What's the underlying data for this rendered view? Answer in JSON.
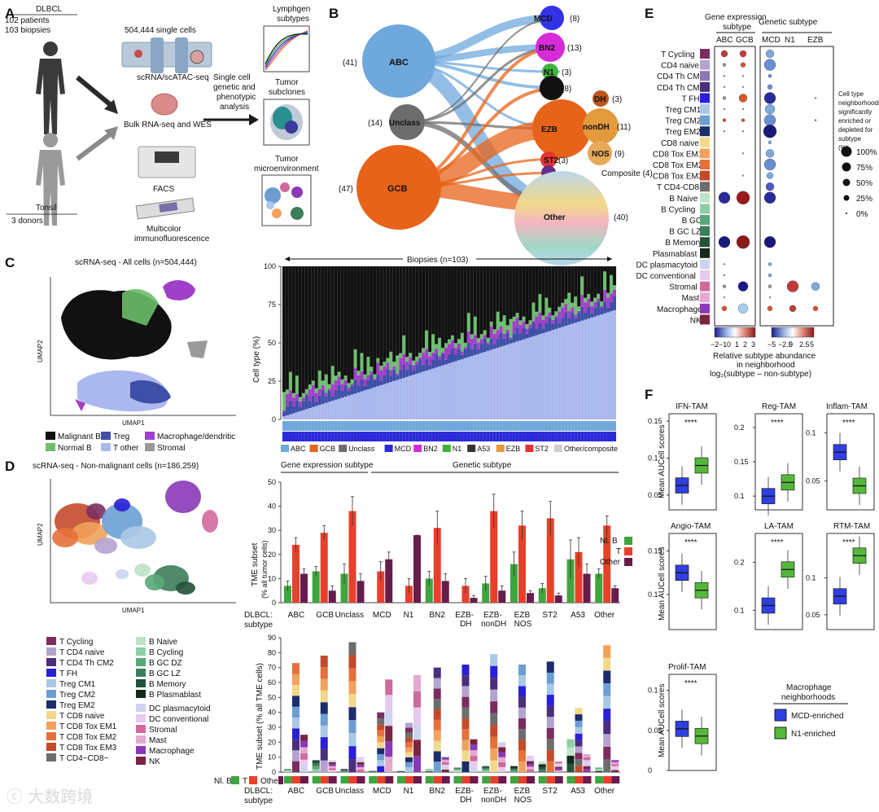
{
  "panelA": {
    "letter": "A",
    "dlbcl_title": "DLBCL",
    "dlbcl_patients": "102 patients",
    "dlbcl_biopsies": "103 biopsies",
    "cells": "504,444 single cells",
    "scrna_label": "scRNA/scATAC-seq",
    "bulk_label": "Bulk RNA-seq and WES",
    "facs_label": "FACS",
    "mif_label1": "Multicolor",
    "mif_label2": "immunofluorescence",
    "tonsil_title": "Tonsil",
    "tonsil_donors": "3 donors",
    "analysis1": "Single cell",
    "analysis2": "genetic and",
    "analysis3": "phenotypic",
    "analysis4": "analysis",
    "out1a": "Lymphgen",
    "out1b": "subtypes",
    "out2a": "Tumor",
    "out2b": "subclones",
    "out3a": "Tumor",
    "out3b": "microenvironment"
  },
  "panelB": {
    "letter": "B",
    "left": [
      {
        "name": "ABC",
        "n": "(41)",
        "color": "#6fa8dc"
      },
      {
        "name": "Unclass",
        "n": "(14)",
        "color": "#6d6d6d"
      },
      {
        "name": "GCB",
        "n": "(47)",
        "color": "#e8631a"
      }
    ],
    "right": [
      {
        "name": "MCD",
        "n": "(8)",
        "color": "#3232e6"
      },
      {
        "name": "BN2",
        "n": "(13)",
        "color": "#d82bd8"
      },
      {
        "name": "N1",
        "n": "(3)",
        "color": "#3fb13f"
      },
      {
        "name": "A53",
        "n": "(8)",
        "color": "#111111"
      },
      {
        "name": "EZB",
        "n": "",
        "color": "#e8631a"
      },
      {
        "name": "DH",
        "n": "(3)",
        "color": "#c0541b"
      },
      {
        "name": "nonDH",
        "n": "(11)",
        "color": "#e29a3c"
      },
      {
        "name": "NOS",
        "n": "(9)",
        "color": "#e7a95a"
      },
      {
        "name": "ST2",
        "n": "(3)",
        "color": "#e63232"
      },
      {
        "name": "Composite",
        "n": "(4)",
        "color": "#6a2c8a"
      },
      {
        "name": "Other",
        "n": "(40)",
        "color": "#b9d7ea"
      }
    ]
  },
  "panelC": {
    "letter": "C",
    "umap_title": "scRNA-seq - All cells (n=504,444)",
    "umap_x": "UMAP1",
    "umap_y": "UMAP2",
    "legend": [
      {
        "label": "Malignant B",
        "color": "#111111"
      },
      {
        "label": "Treg",
        "color": "#3f4fa8"
      },
      {
        "label": "Macrophage/dendritic",
        "color": "#a040c8"
      },
      {
        "label": "Normal B",
        "color": "#6cbe6c"
      },
      {
        "label": "T other",
        "color": "#aab8ee"
      },
      {
        "label": "Stromal",
        "color": "#9a9a9a"
      }
    ],
    "biopsies_label": "Biopsies (n=103)",
    "y_label": "Cell type (%)",
    "y_ticks": [
      "0",
      "25",
      "50",
      "75",
      "100"
    ],
    "subtype_legend": [
      {
        "label": "ABC",
        "color": "#6fa8dc"
      },
      {
        "label": "GCB",
        "color": "#e8631a"
      },
      {
        "label": "Unclass",
        "color": "#6d6d6d"
      },
      {
        "label": "MCD",
        "color": "#2a2ad8"
      },
      {
        "label": "BN2",
        "color": "#d82bd8"
      },
      {
        "label": "N1",
        "color": "#3fb13f"
      },
      {
        "label": "A53",
        "color": "#333333"
      },
      {
        "label": "EZB",
        "color": "#e29a3c"
      },
      {
        "label": "ST2",
        "color": "#e63232"
      },
      {
        "label": "Other/composite",
        "color": "#cfcfcf"
      }
    ]
  },
  "panelD": {
    "letter": "D",
    "umap_title": "scRNA-seq - Non-malignant cells (n=186,259)",
    "umap_x": "UMAP1",
    "umap_y": "UMAP2",
    "legend_col1": [
      {
        "label": "T Cycling",
        "color": "#7b2d5e"
      },
      {
        "label": "T CD4 naive",
        "color": "#b3a3cf"
      },
      {
        "label": "T CD4 Th CM2",
        "color": "#4a2f7c"
      },
      {
        "label": "T FH",
        "color": "#2a1fd6"
      },
      {
        "label": "Treg CM1",
        "color": "#a9c8e6"
      },
      {
        "label": "Treg CM2",
        "color": "#6c9ed3"
      },
      {
        "label": "Treg EM2",
        "color": "#1d2c6b"
      },
      {
        "label": "T CD8 naive",
        "color": "#f2d98a"
      },
      {
        "label": "T CD8 Tox EM1",
        "color": "#f2a25c"
      },
      {
        "label": "T CD8 Tox EM2",
        "color": "#e5703a"
      },
      {
        "label": "T CD8 Tox EM3",
        "color": "#c44a2c"
      },
      {
        "label": "T CD4−CD8−",
        "color": "#6d6d6d"
      }
    ],
    "legend_col2": [
      {
        "label": "B Naive",
        "color": "#bfe3c6"
      },
      {
        "label": "B Cycling",
        "color": "#8ccfa3"
      },
      {
        "label": "B GC DZ",
        "color": "#5aa77a"
      },
      {
        "label": "B GC LZ",
        "color": "#3d7d5a"
      },
      {
        "label": "B Memory",
        "color": "#23513a"
      },
      {
        "label": "B Plasmablast",
        "color": "#14281d"
      },
      {
        "label": "DC plasmacytoid",
        "color": "#cfd3f2"
      },
      {
        "label": "DC conventional",
        "color": "#e8c9ef"
      },
      {
        "label": "Stromal",
        "color": "#d06a9c"
      },
      {
        "label": "Mast",
        "color": "#e3a9d2"
      },
      {
        "label": "Macrophage",
        "color": "#8a38b8"
      },
      {
        "label": "NK",
        "color": "#7a2440"
      }
    ],
    "top_group1": "Gene expression subtype",
    "top_group2": "Genetic subtype",
    "top_y_label1": "TME subset",
    "top_y_label2": "(% all tumor cells)",
    "top_y_ticks": [
      "0",
      "10",
      "20",
      "30",
      "40",
      "50"
    ],
    "bar_legend": [
      {
        "label": "Nl. B",
        "color": "#3fa53f"
      },
      {
        "label": "T",
        "color": "#e8402a"
      },
      {
        "label": "Other",
        "color": "#6a1b4d"
      }
    ],
    "dlbcl_label": "DLBCL:",
    "subtype_label": "subtype",
    "categories": [
      "ABC",
      "GCB",
      "Unclass",
      "MCD",
      "N1",
      "BN2",
      "EZB-\nDH",
      "EZB-\nnonDH",
      "EZB\nNOS",
      "ST2",
      "A53",
      "Other"
    ],
    "bottom_y_label": "TME subset (% all TME cells)",
    "bottom_y_ticks": [
      "0",
      "10",
      "20",
      "30",
      "40",
      "50",
      "60",
      "70",
      "80",
      "90"
    ],
    "bottom_legend_nlb": "Nl. B",
    "bottom_legend_t": "T",
    "bottom_legend_other": "Other"
  },
  "chart_data": [
    {
      "type": "bar",
      "title": "TME subset (% all tumor cells)",
      "categories": [
        "ABC",
        "GCB",
        "Unclass",
        "MCD",
        "N1",
        "BN2",
        "EZB-DH",
        "EZB-nonDH",
        "EZB NOS",
        "ST2",
        "A53",
        "Other"
      ],
      "series": [
        {
          "name": "Nl. B",
          "values": [
            7,
            13,
            12,
            0,
            0,
            10,
            0,
            8,
            16,
            6,
            18,
            12
          ],
          "err": [
            2,
            2,
            4,
            0,
            0,
            3,
            0,
            3,
            5,
            2,
            8,
            2
          ]
        },
        {
          "name": "T",
          "values": [
            24,
            29,
            38,
            13,
            7,
            31,
            7,
            38,
            32,
            35,
            21,
            32
          ],
          "err": [
            3,
            3,
            6,
            4,
            3,
            7,
            3,
            7,
            6,
            7,
            6,
            4
          ]
        },
        {
          "name": "Other",
          "values": [
            12,
            5,
            9,
            18,
            28,
            9,
            2,
            5,
            4,
            3,
            12,
            6
          ],
          "err": [
            2,
            2,
            3,
            3,
            0,
            3,
            1,
            2,
            1,
            1,
            4,
            1
          ]
        }
      ],
      "ylim": [
        0,
        50
      ]
    },
    {
      "type": "bar",
      "title": "Relative subtype abundance (F) Mean AUCell scores",
      "panels": [
        {
          "name": "IFN-TAM",
          "MCD-enriched": 0.063,
          "N1-enriched": 0.09,
          "sig": "****"
        },
        {
          "name": "Reg-TAM",
          "MCD-enriched": 0.1,
          "N1-enriched": 0.12,
          "sig": "****"
        },
        {
          "name": "Inflam-TAM",
          "MCD-enriched": 0.08,
          "N1-enriched": 0.045,
          "sig": "****"
        },
        {
          "name": "Angio-TAM",
          "MCD-enriched": 0.125,
          "N1-enriched": 0.105,
          "sig": "****"
        },
        {
          "name": "LA-TAM",
          "MCD-enriched": 0.11,
          "N1-enriched": 0.18,
          "sig": "****"
        },
        {
          "name": "RTM-TAM",
          "MCD-enriched": 0.075,
          "N1-enriched": 0.13,
          "sig": "****"
        },
        {
          "name": "Prolif-TAM",
          "MCD-enriched": 0.052,
          "N1-enriched": 0.043,
          "sig": "****"
        }
      ]
    }
  ],
  "panelE": {
    "letter": "E",
    "group1": "Gene expression",
    "group1b": "subtype",
    "group2": "Genetic subtype",
    "cols1": [
      "ABC",
      "GCB"
    ],
    "cols2": [
      "MCD",
      "N1",
      "EZB"
    ],
    "rows": [
      "T Cycling",
      "CD4 naive",
      "CD4 Th CM1",
      "CD4 Th CM2",
      "T FH",
      "Treg CM1",
      "Treg CM2",
      "Treg EM2",
      "CD8 naive",
      "CD8 Tox EM1",
      "CD8 Tox EM2",
      "CD8 Tox EM3",
      "T CD4-CD8-",
      "B Naive",
      "B Cycling",
      "B GC",
      "B GC LZ",
      "B Memory",
      "Plasmablast",
      "DC plasmacytoid",
      "DC conventional",
      "Stromal",
      "Mast",
      "Macrophage",
      "NK"
    ],
    "row_colors": [
      "#7b2d5e",
      "#b3a3cf",
      "#8a78b8",
      "#4a2f7c",
      "#2a1fd6",
      "#a9c8e6",
      "#6c9ed3",
      "#1d2c6b",
      "#f2d98a",
      "#f2a25c",
      "#e5703a",
      "#c44a2c",
      "#6d6d6d",
      "#bfe3c6",
      "#8ccfa3",
      "#5aa77a",
      "#3d7d5a",
      "#23513a",
      "#14281d",
      "#cfd3f2",
      "#e8c9ef",
      "#d06a9c",
      "#e3a9d2",
      "#8a38b8",
      "#7a2440"
    ],
    "size_legend_title": [
      "Cell type",
      "neighborhoods",
      "significantly",
      "enriched or",
      "depleted for",
      "subtype",
      "(%)"
    ],
    "size_legend": [
      "100%",
      "75%",
      "50%",
      "25%",
      "0%"
    ],
    "scale1_ticks": [
      "−2",
      "−1",
      "0",
      "1",
      "2",
      "3"
    ],
    "scale2_ticks": [
      "−5",
      "−2.5",
      "0",
      "2.5",
      "5"
    ],
    "axis_label1": "Relative subtype abundance",
    "axis_label2": "in neighborhood",
    "axis_label3": "log₂(subtype – non-subtype)"
  },
  "panelF": {
    "letter": "F",
    "y_label": "Mean AUCell scores",
    "sig": "****",
    "titles": [
      "IFN-TAM",
      "Reg-TAM",
      "Inflam-TAM",
      "Angio-TAM",
      "LA-TAM",
      "RTM-TAM",
      "Prolif-TAM"
    ],
    "legend_title1": "Macrophage",
    "legend_title2": "neighborhoods",
    "legend": [
      {
        "label": "MCD-enriched",
        "color": "#2f3fe0"
      },
      {
        "label": "N1-enriched",
        "color": "#55b83a"
      }
    ]
  },
  "watermark": "大数跨境"
}
